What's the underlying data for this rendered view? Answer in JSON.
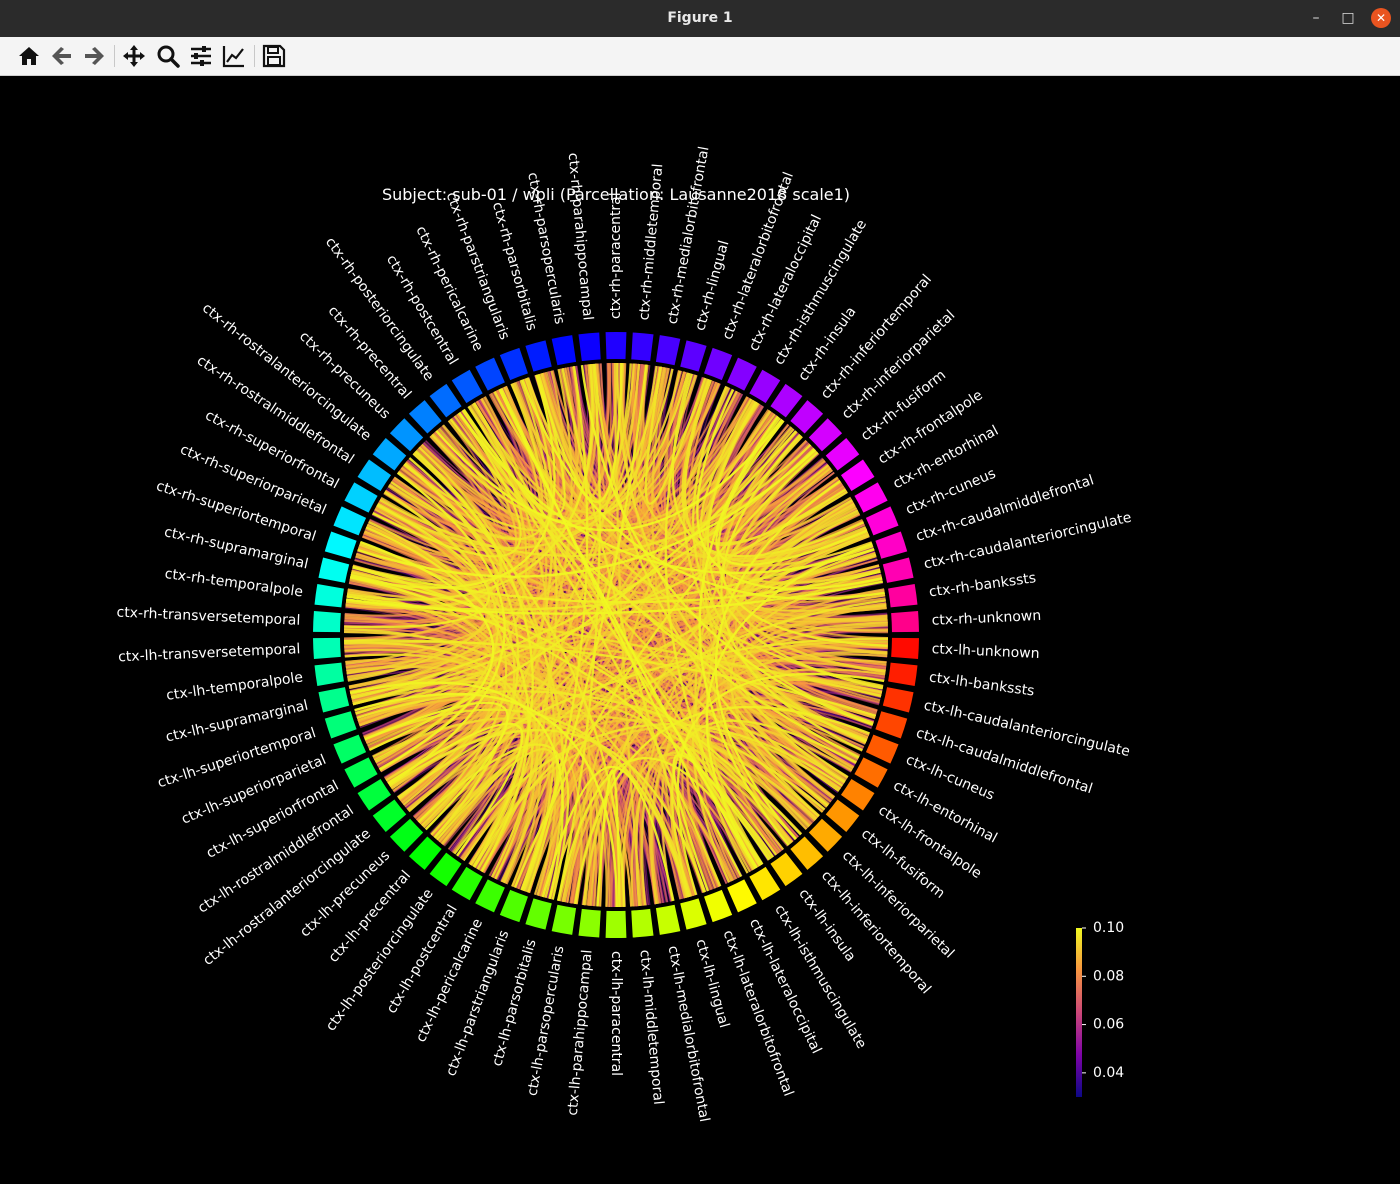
{
  "window": {
    "title": "Figure 1",
    "controls": [
      "minimize-icon",
      "maximize-icon",
      "close-icon"
    ]
  },
  "toolbar": {
    "buttons": [
      {
        "name": "home-button",
        "icon": "home-icon"
      },
      {
        "name": "back-button",
        "icon": "arrow-left-icon"
      },
      {
        "name": "forward-button",
        "icon": "arrow-right-icon"
      },
      {
        "name": "pan-button",
        "icon": "move-icon"
      },
      {
        "name": "zoom-button",
        "icon": "magnifier-icon"
      },
      {
        "name": "configure-subplots-button",
        "icon": "sliders-icon"
      },
      {
        "name": "edit-axes-button",
        "icon": "line-chart-icon"
      },
      {
        "name": "save-button",
        "icon": "floppy-disk-icon"
      }
    ]
  },
  "figure": {
    "title": "Subject: sub-01 / wpli (Parcellation: Lausanne2018 scale1)",
    "nodes": [
      "ctx-rh-unknown",
      "ctx-rh-bankssts",
      "ctx-rh-caudalanteriorcingulate",
      "ctx-rh-caudalmiddlefrontal",
      "ctx-rh-cuneus",
      "ctx-rh-entorhinal",
      "ctx-rh-frontalpole",
      "ctx-rh-fusiform",
      "ctx-rh-inferiorparietal",
      "ctx-rh-inferiortemporal",
      "ctx-rh-insula",
      "ctx-rh-isthmuscingulate",
      "ctx-rh-lateraloccipital",
      "ctx-rh-lateralorbitofrontal",
      "ctx-rh-lingual",
      "ctx-rh-medialorbitofrontal",
      "ctx-rh-middletemporal",
      "ctx-rh-paracentral",
      "ctx-rh-parahippocampal",
      "ctx-rh-parsopercularis",
      "ctx-rh-parsorbitalis",
      "ctx-rh-parstriangularis",
      "ctx-rh-pericalcarine",
      "ctx-rh-postcentral",
      "ctx-rh-posteriorcingulate",
      "ctx-rh-precentral",
      "ctx-rh-precuneus",
      "ctx-rh-rostralanteriorcingulate",
      "ctx-rh-rostralmiddlefrontal",
      "ctx-rh-superiorfrontal",
      "ctx-rh-superiorparietal",
      "ctx-rh-superiortemporal",
      "ctx-rh-supramarginal",
      "ctx-rh-temporalpole",
      "ctx-rh-transversetemporal",
      "ctx-lh-unknown",
      "ctx-lh-bankssts",
      "ctx-lh-caudalanteriorcingulate",
      "ctx-lh-caudalmiddlefrontal",
      "ctx-lh-cuneus",
      "ctx-lh-entorhinal",
      "ctx-lh-frontalpole",
      "ctx-lh-fusiform",
      "ctx-lh-inferiorparietal",
      "ctx-lh-inferiortemporal",
      "ctx-lh-insula",
      "ctx-lh-isthmuscingulate",
      "ctx-lh-lateraloccipital",
      "ctx-lh-lateralorbitofrontal",
      "ctx-lh-lingual",
      "ctx-lh-medialorbitofrontal",
      "ctx-lh-middletemporal",
      "ctx-lh-paracentral",
      "ctx-lh-parahippocampal",
      "ctx-lh-parsopercularis",
      "ctx-lh-parsorbitalis",
      "ctx-lh-parstriangularis",
      "ctx-lh-pericalcarine",
      "ctx-lh-postcentral",
      "ctx-lh-posteriorcingulate",
      "ctx-lh-precentral",
      "ctx-lh-precuneus",
      "ctx-lh-rostralanteriorcingulate",
      "ctx-lh-rostralmiddlefrontal",
      "ctx-lh-superiorfrontal",
      "ctx-lh-superiorparietal",
      "ctx-lh-superiortemporal",
      "ctx-lh-supramarginal",
      "ctx-lh-temporalpole",
      "ctx-lh-transversetemporal"
    ],
    "colorbar": {
      "ticks": [
        "0.10",
        "0.08",
        "0.06",
        "0.04"
      ],
      "vmin": 0.03,
      "vmax": 0.1,
      "colormap": "plasma-like"
    },
    "colors": {
      "background": "#000000",
      "text": "#ffffff",
      "node_edge": "#000000"
    }
  }
}
